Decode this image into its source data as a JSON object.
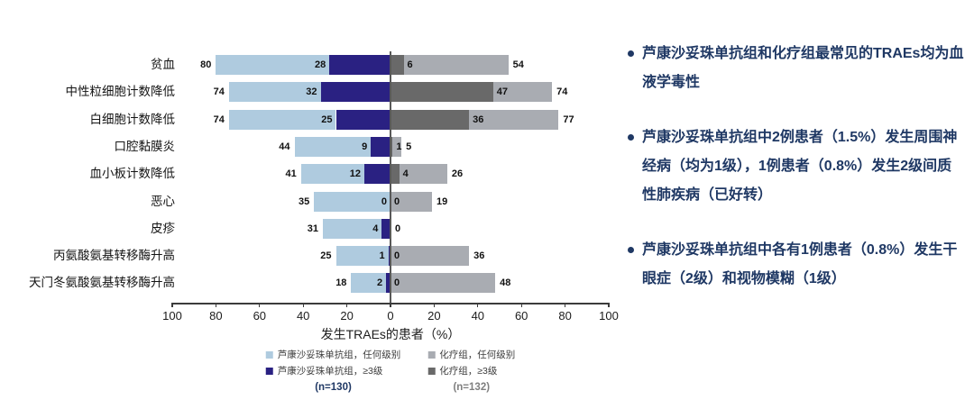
{
  "chart_data": {
    "type": "bar",
    "subtype": "diverging-tornado",
    "title": "",
    "xlabel": "发生TRAEs的患者（%）",
    "xlim": [
      -100,
      100
    ],
    "x_ticks": [
      -100,
      -80,
      -60,
      -40,
      -20,
      0,
      20,
      40,
      60,
      80,
      100
    ],
    "grid": false,
    "legend_position": "bottom",
    "categories": [
      "贫血",
      "中性粒细胞计数降低",
      "白细胞计数降低",
      "口腔黏膜炎",
      "血小板计数降低",
      "恶心",
      "皮疹",
      "丙氨酸氨基转移酶升高",
      "天门冬氨酸氨基转移酶升高"
    ],
    "series": [
      {
        "name": "芦康沙妥珠单抗组，任何级别",
        "side": "left",
        "grade": "any",
        "color": "#AFCBDF",
        "values": [
          80,
          74,
          74,
          44,
          41,
          35,
          31,
          25,
          18
        ]
      },
      {
        "name": "芦康沙妥珠单抗组，≥3级",
        "side": "left",
        "grade": "ge3",
        "color": "#2A2182",
        "values": [
          28,
          32,
          25,
          9,
          12,
          0,
          4,
          1,
          2
        ]
      },
      {
        "name": "化疗组，任何级别",
        "side": "right",
        "grade": "any",
        "color": "#A9ACB2",
        "values": [
          54,
          74,
          77,
          5,
          26,
          19,
          0,
          36,
          48
        ]
      },
      {
        "name": "化疗组，≥3级",
        "side": "right",
        "grade": "ge3",
        "color": "#696969",
        "values": [
          6,
          47,
          36,
          1,
          4,
          0,
          0,
          0,
          0
        ]
      }
    ],
    "legend": {
      "left_group": {
        "any": "芦康沙妥珠单抗组，任何级别",
        "ge3": "芦康沙妥珠单抗组，≥3级",
        "n": "(n=130)"
      },
      "right_group": {
        "any": "化疗组，任何级别",
        "ge3": "化疗组，≥3级",
        "n": "(n=132)"
      }
    }
  },
  "bullets": [
    "芦康沙妥珠单抗组和化疗组最常见的TRAEs均为血液学毒性",
    "芦康沙妥珠单抗组中2例患者（1.5%）发生周围神经病（均为1级），1例患者（0.8%）发生2级间质性肺疾病（已好转）",
    "芦康沙妥珠单抗组中各有1例患者（0.8%）发生干眼症（2级）和视物模糊（1级）"
  ],
  "colors": {
    "light_blue": "#AFCBDF",
    "dark_blue": "#2A2182",
    "light_gray": "#A9ACB2",
    "dark_gray": "#696969",
    "navy_text": "#1F3864",
    "legend_gray": "#7f7f7f",
    "axis": "#3b3b3b"
  }
}
